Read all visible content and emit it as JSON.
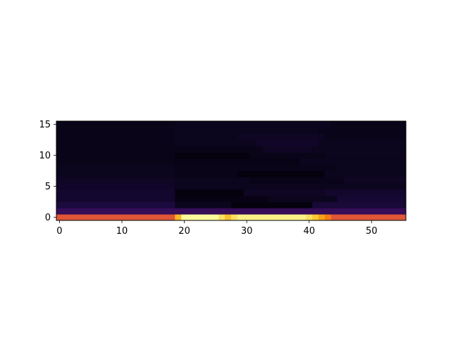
{
  "chart_data": {
    "type": "heatmap",
    "title": "",
    "xlabel": "",
    "ylabel": "",
    "colormap": "inferno",
    "x_cells": 56,
    "y_cells": 16,
    "xlim": [
      -0.5,
      55.5
    ],
    "ylim": [
      -0.5,
      15.5
    ],
    "x_ticks": [
      0,
      10,
      20,
      30,
      40,
      50
    ],
    "y_ticks": [
      0,
      5,
      10,
      15
    ],
    "value_range": [
      0,
      1
    ],
    "rows": [
      {
        "y": 0,
        "segments": [
          {
            "x_start": 0,
            "x_end": 18,
            "value": 0.62
          },
          {
            "x_start": 19,
            "x_end": 19,
            "value": 0.84
          },
          {
            "x_start": 20,
            "x_end": 25,
            "value": 0.99
          },
          {
            "x_start": 26,
            "x_end": 26,
            "value": 0.93
          },
          {
            "x_start": 27,
            "x_end": 27,
            "value": 0.86
          },
          {
            "x_start": 28,
            "x_end": 28,
            "value": 0.93
          },
          {
            "x_start": 29,
            "x_end": 39,
            "value": 0.97
          },
          {
            "x_start": 40,
            "x_end": 40,
            "value": 0.93
          },
          {
            "x_start": 41,
            "x_end": 41,
            "value": 0.88
          },
          {
            "x_start": 42,
            "x_end": 42,
            "value": 0.8
          },
          {
            "x_start": 43,
            "x_end": 43,
            "value": 0.72
          },
          {
            "x_start": 44,
            "x_end": 55,
            "value": 0.62
          }
        ]
      },
      {
        "y": 1,
        "segments": [
          {
            "x_start": 0,
            "x_end": 55,
            "value": 0.18
          }
        ]
      },
      {
        "y": 2,
        "segments": [
          {
            "x_start": 0,
            "x_end": 18,
            "value": 0.11
          },
          {
            "x_start": 19,
            "x_end": 27,
            "value": 0.05
          },
          {
            "x_start": 28,
            "x_end": 40,
            "value": 0.02
          },
          {
            "x_start": 41,
            "x_end": 55,
            "value": 0.1
          }
        ]
      },
      {
        "y": 3,
        "segments": [
          {
            "x_start": 0,
            "x_end": 18,
            "value": 0.08
          },
          {
            "x_start": 19,
            "x_end": 33,
            "value": 0.03
          },
          {
            "x_start": 34,
            "x_end": 44,
            "value": 0.05
          },
          {
            "x_start": 45,
            "x_end": 55,
            "value": 0.09
          }
        ]
      },
      {
        "y": 4,
        "segments": [
          {
            "x_start": 0,
            "x_end": 18,
            "value": 0.08
          },
          {
            "x_start": 19,
            "x_end": 29,
            "value": 0.02
          },
          {
            "x_start": 30,
            "x_end": 42,
            "value": 0.06
          },
          {
            "x_start": 43,
            "x_end": 55,
            "value": 0.08
          }
        ]
      },
      {
        "y": 5,
        "segments": [
          {
            "x_start": 0,
            "x_end": 18,
            "value": 0.07
          },
          {
            "x_start": 19,
            "x_end": 55,
            "value": 0.05
          }
        ]
      },
      {
        "y": 6,
        "segments": [
          {
            "x_start": 0,
            "x_end": 18,
            "value": 0.06
          },
          {
            "x_start": 19,
            "x_end": 30,
            "value": 0.05
          },
          {
            "x_start": 31,
            "x_end": 45,
            "value": 0.04
          },
          {
            "x_start": 46,
            "x_end": 55,
            "value": 0.06
          }
        ]
      },
      {
        "y": 7,
        "segments": [
          {
            "x_start": 0,
            "x_end": 18,
            "value": 0.05
          },
          {
            "x_start": 19,
            "x_end": 28,
            "value": 0.04
          },
          {
            "x_start": 29,
            "x_end": 42,
            "value": 0.02
          },
          {
            "x_start": 43,
            "x_end": 55,
            "value": 0.05
          }
        ]
      },
      {
        "y": 8,
        "segments": [
          {
            "x_start": 0,
            "x_end": 18,
            "value": 0.05
          },
          {
            "x_start": 19,
            "x_end": 44,
            "value": 0.04
          },
          {
            "x_start": 45,
            "x_end": 55,
            "value": 0.05
          }
        ]
      },
      {
        "y": 9,
        "segments": [
          {
            "x_start": 0,
            "x_end": 18,
            "value": 0.04
          },
          {
            "x_start": 19,
            "x_end": 38,
            "value": 0.03
          },
          {
            "x_start": 39,
            "x_end": 55,
            "value": 0.05
          }
        ]
      },
      {
        "y": 10,
        "segments": [
          {
            "x_start": 0,
            "x_end": 18,
            "value": 0.04
          },
          {
            "x_start": 19,
            "x_end": 30,
            "value": 0.02
          },
          {
            "x_start": 31,
            "x_end": 42,
            "value": 0.04
          },
          {
            "x_start": 43,
            "x_end": 55,
            "value": 0.05
          }
        ]
      },
      {
        "y": 11,
        "segments": [
          {
            "x_start": 0,
            "x_end": 18,
            "value": 0.04
          },
          {
            "x_start": 19,
            "x_end": 32,
            "value": 0.04
          },
          {
            "x_start": 33,
            "x_end": 40,
            "value": 0.06
          },
          {
            "x_start": 41,
            "x_end": 55,
            "value": 0.05
          }
        ]
      },
      {
        "y": 12,
        "segments": [
          {
            "x_start": 0,
            "x_end": 18,
            "value": 0.04
          },
          {
            "x_start": 19,
            "x_end": 31,
            "value": 0.05
          },
          {
            "x_start": 32,
            "x_end": 41,
            "value": 0.07
          },
          {
            "x_start": 42,
            "x_end": 55,
            "value": 0.05
          }
        ]
      },
      {
        "y": 13,
        "segments": [
          {
            "x_start": 0,
            "x_end": 18,
            "value": 0.04
          },
          {
            "x_start": 19,
            "x_end": 28,
            "value": 0.05
          },
          {
            "x_start": 29,
            "x_end": 42,
            "value": 0.06
          },
          {
            "x_start": 43,
            "x_end": 55,
            "value": 0.04
          }
        ]
      },
      {
        "y": 14,
        "segments": [
          {
            "x_start": 0,
            "x_end": 18,
            "value": 0.04
          },
          {
            "x_start": 19,
            "x_end": 41,
            "value": 0.05
          },
          {
            "x_start": 42,
            "x_end": 55,
            "value": 0.04
          }
        ]
      },
      {
        "y": 15,
        "segments": [
          {
            "x_start": 0,
            "x_end": 18,
            "value": 0.04
          },
          {
            "x_start": 19,
            "x_end": 43,
            "value": 0.05
          },
          {
            "x_start": 44,
            "x_end": 55,
            "value": 0.04
          }
        ]
      }
    ]
  }
}
